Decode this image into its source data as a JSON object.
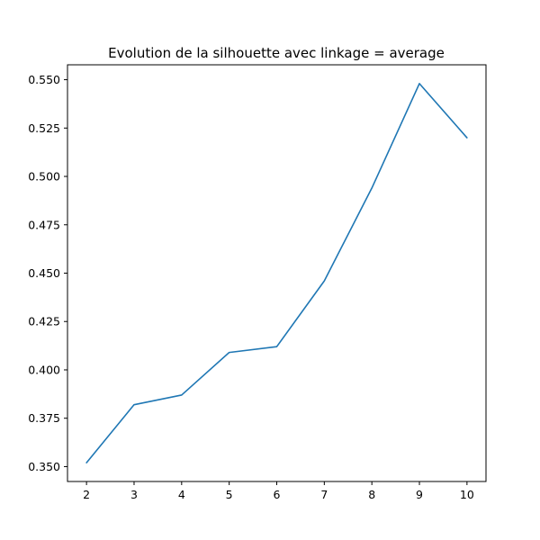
{
  "chart_data": {
    "type": "line",
    "title": "Evolution de la silhouette avec linkage = average",
    "xlabel": "",
    "ylabel": "",
    "x": [
      2,
      3,
      4,
      5,
      6,
      7,
      8,
      9,
      10
    ],
    "series": [
      {
        "values": [
          0.352,
          0.382,
          0.387,
          0.409,
          0.412,
          0.446,
          0.494,
          0.548,
          0.52
        ],
        "color": "#1f77b4"
      }
    ],
    "xlim": [
      1.6,
      10.4
    ],
    "ylim": [
      0.3423,
      0.5577
    ],
    "xticks": [
      2,
      3,
      4,
      5,
      6,
      7,
      8,
      9,
      10
    ],
    "xtick_labels": [
      "2",
      "3",
      "4",
      "5",
      "6",
      "7",
      "8",
      "9",
      "10"
    ],
    "yticks": [
      0.35,
      0.375,
      0.4,
      0.425,
      0.45,
      0.475,
      0.5,
      0.525,
      0.55
    ],
    "ytick_labels": [
      "0.350",
      "0.375",
      "0.400",
      "0.425",
      "0.450",
      "0.475",
      "0.500",
      "0.525",
      "0.550"
    ],
    "grid": false,
    "legend": "none"
  }
}
